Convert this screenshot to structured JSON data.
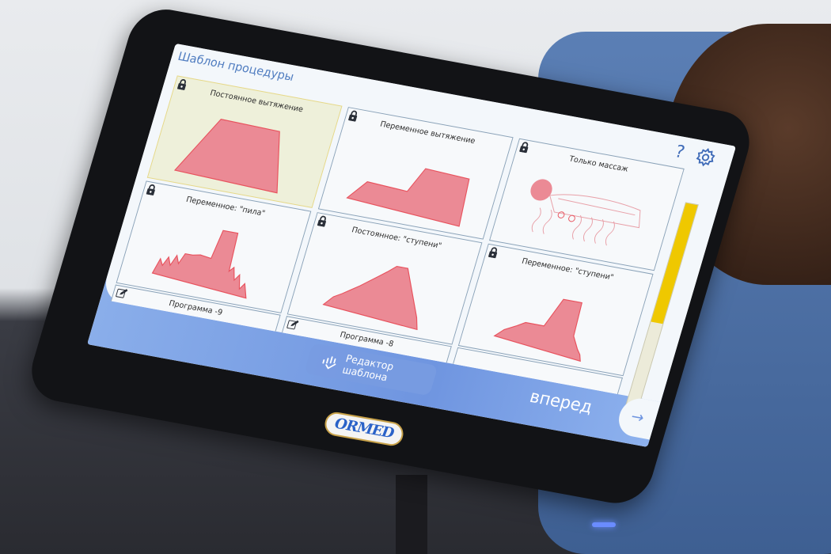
{
  "screen": {
    "title": "Шаблон процедуры",
    "help_label": "?",
    "scroll_position_percent": 55,
    "tiles": [
      {
        "label": "Постоянное вытяжение",
        "locked": true,
        "selected": true,
        "shape": "trapezoid"
      },
      {
        "label": "Переменное вытяжение",
        "locked": true,
        "selected": false,
        "shape": "step"
      },
      {
        "label": "Только массаж",
        "locked": true,
        "selected": false,
        "shape": "massage"
      },
      {
        "label": "Переменное: \"пила\"",
        "locked": true,
        "selected": false,
        "shape": "saw"
      },
      {
        "label": "Постоянное: \"ступени\"",
        "locked": true,
        "selected": false,
        "shape": "stairs"
      },
      {
        "label": "Переменное: \"ступени\"",
        "locked": true,
        "selected": false,
        "shape": "step-stairs"
      }
    ],
    "programs": [
      {
        "label": "Программа -9",
        "editable": true
      },
      {
        "label": "Программа -8",
        "editable": true
      },
      {
        "label": "",
        "editable": false
      }
    ],
    "editor_button": "Редактор шаблона",
    "next_button": "вперед",
    "next_arrow": "→"
  },
  "device": {
    "brand_logo": "ORMED"
  },
  "colors": {
    "accent": "#4f7cc0",
    "shape_fill": "#eb8a95",
    "shape_stroke": "#e8535e",
    "scroll_thumb": "#efc800",
    "selected_tile": "#eef0da"
  }
}
